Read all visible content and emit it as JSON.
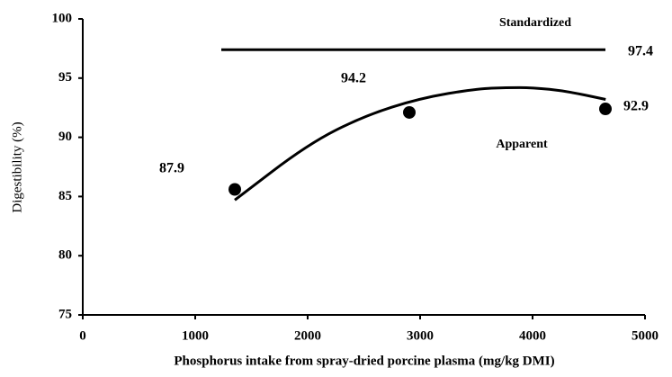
{
  "chart_data": {
    "type": "scatter",
    "xlabel": "Phosphorus intake from spray-dried porcine plasma (mg/kg DMI)",
    "ylabel": "Digestibility (%)",
    "xlim": [
      0,
      5000
    ],
    "xticks": [
      0,
      1000,
      2000,
      3000,
      4000,
      5000
    ],
    "ylim": [
      75,
      100
    ],
    "yticks": [
      75,
      80,
      85,
      90,
      95,
      100
    ],
    "series": [
      {
        "name": "Standardized",
        "kind": "line",
        "color": "#000000",
        "x": [
          1232,
          4648
        ],
        "values": [
          97.4,
          97.4
        ]
      },
      {
        "name": "Apparent",
        "kind": "points",
        "color": "#000000",
        "x": [
          1352,
          2904,
          4648
        ],
        "values": [
          85.6,
          92.1,
          92.4
        ]
      },
      {
        "kind": "line",
        "color": "#000000",
        "x": [
          1352,
          2000,
          2500,
          3000,
          3500,
          3770,
          4000,
          4300,
          4650
        ],
        "values": [
          84.7,
          89.4,
          91.8,
          93.3,
          94.1,
          94.2,
          94.2,
          93.9,
          93.2
        ]
      }
    ],
    "annotations": [
      "87.9",
      "94.2",
      "92.9",
      "97.4"
    ]
  }
}
